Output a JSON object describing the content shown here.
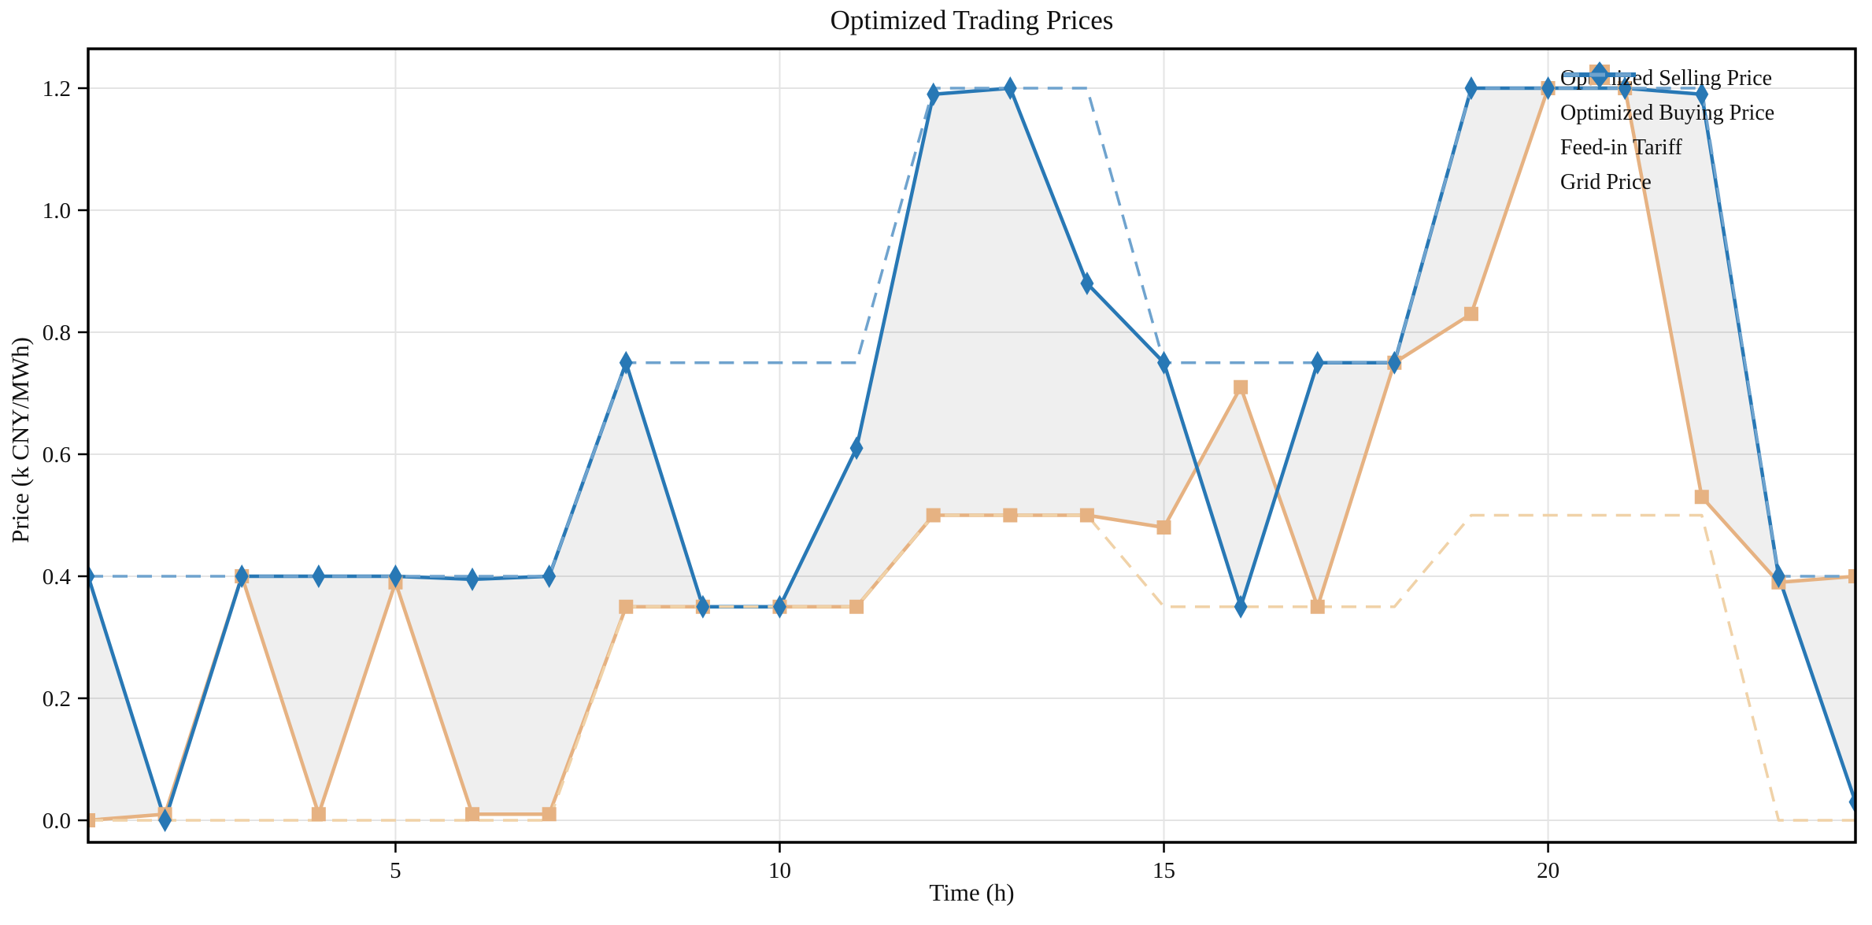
{
  "title": "Optimized Trading Prices",
  "axes": {
    "xlabel": "Time (h)",
    "ylabel": "Price (k CNY/MWh)",
    "x_ticks": [
      5,
      10,
      15,
      20
    ],
    "x_tick_labels": [
      "5",
      "10",
      "15",
      "20"
    ],
    "y_ticks": [
      0.0,
      0.2,
      0.4,
      0.6,
      0.8,
      1.0,
      1.2
    ],
    "y_tick_labels": [
      "0.0",
      "0.2",
      "0.4",
      "0.6",
      "0.8",
      "1.0",
      "1.2"
    ],
    "xlim": [
      1,
      24
    ],
    "ylim": [
      -0.034,
      1.263
    ],
    "grid": true
  },
  "legend": {
    "position": "upper-right",
    "items": [
      {
        "label": "Optimized Selling Price",
        "style": "solid",
        "marker": "square",
        "color": "#e6b282"
      },
      {
        "label": "Optimized Buying Price",
        "style": "solid",
        "marker": "diamond",
        "color": "#2878b5"
      },
      {
        "label": "Feed-in Tariff",
        "style": "dashed",
        "marker": "none",
        "color": "#f0d2a8"
      },
      {
        "label": "Grid Price",
        "style": "dashed",
        "marker": "none",
        "color": "#6fa3ce"
      }
    ]
  },
  "colors": {
    "selling": "#e6b282",
    "buying": "#2878b5",
    "feed_in": "#f0d2a8",
    "grid_price": "#6fa3ce",
    "gridline": "#e4e4e4",
    "frame": "#000000",
    "fill_between": "rgba(120,120,120,0.12)",
    "text": "#111111"
  },
  "chart_data": {
    "type": "line",
    "x": [
      1,
      2,
      3,
      4,
      5,
      6,
      7,
      8,
      9,
      10,
      11,
      12,
      13,
      14,
      15,
      16,
      17,
      18,
      19,
      20,
      21,
      22,
      23,
      24
    ],
    "series": [
      {
        "name": "Optimized Selling Price",
        "style": "solid",
        "marker": "square",
        "color": "#e6b282",
        "values": [
          0.0,
          0.01,
          0.4,
          0.01,
          0.39,
          0.01,
          0.01,
          0.35,
          0.35,
          0.35,
          0.35,
          0.5,
          0.5,
          0.5,
          0.48,
          0.71,
          0.35,
          0.75,
          0.83,
          1.2,
          1.2,
          0.53,
          0.39,
          0.4
        ]
      },
      {
        "name": "Optimized Buying Price",
        "style": "solid",
        "marker": "diamond",
        "color": "#2878b5",
        "values": [
          0.4,
          0.0,
          0.4,
          0.4,
          0.4,
          0.395,
          0.4,
          0.75,
          0.35,
          0.35,
          0.61,
          1.19,
          1.2,
          0.88,
          0.75,
          0.35,
          0.75,
          0.75,
          1.2,
          1.2,
          1.2,
          1.19,
          0.4,
          0.03
        ]
      },
      {
        "name": "Feed-in Tariff",
        "style": "dashed",
        "marker": "none",
        "color": "#f0d2a8",
        "values": [
          0.0,
          0.0,
          0.0,
          0.0,
          0.0,
          0.0,
          0.0,
          0.35,
          0.35,
          0.35,
          0.35,
          0.5,
          0.5,
          0.5,
          0.35,
          0.35,
          0.35,
          0.35,
          0.5,
          0.5,
          0.5,
          0.5,
          0.0,
          0.0
        ]
      },
      {
        "name": "Grid Price",
        "style": "dashed",
        "marker": "none",
        "color": "#6fa3ce",
        "values": [
          0.4,
          0.4,
          0.4,
          0.4,
          0.4,
          0.4,
          0.4,
          0.75,
          0.75,
          0.75,
          0.75,
          1.2,
          1.2,
          1.2,
          0.75,
          0.75,
          0.75,
          0.75,
          1.2,
          1.2,
          1.2,
          1.2,
          0.4,
          0.4
        ]
      }
    ],
    "fill_between": {
      "lower": "Optimized Selling Price",
      "upper": "Optimized Buying Price"
    }
  }
}
